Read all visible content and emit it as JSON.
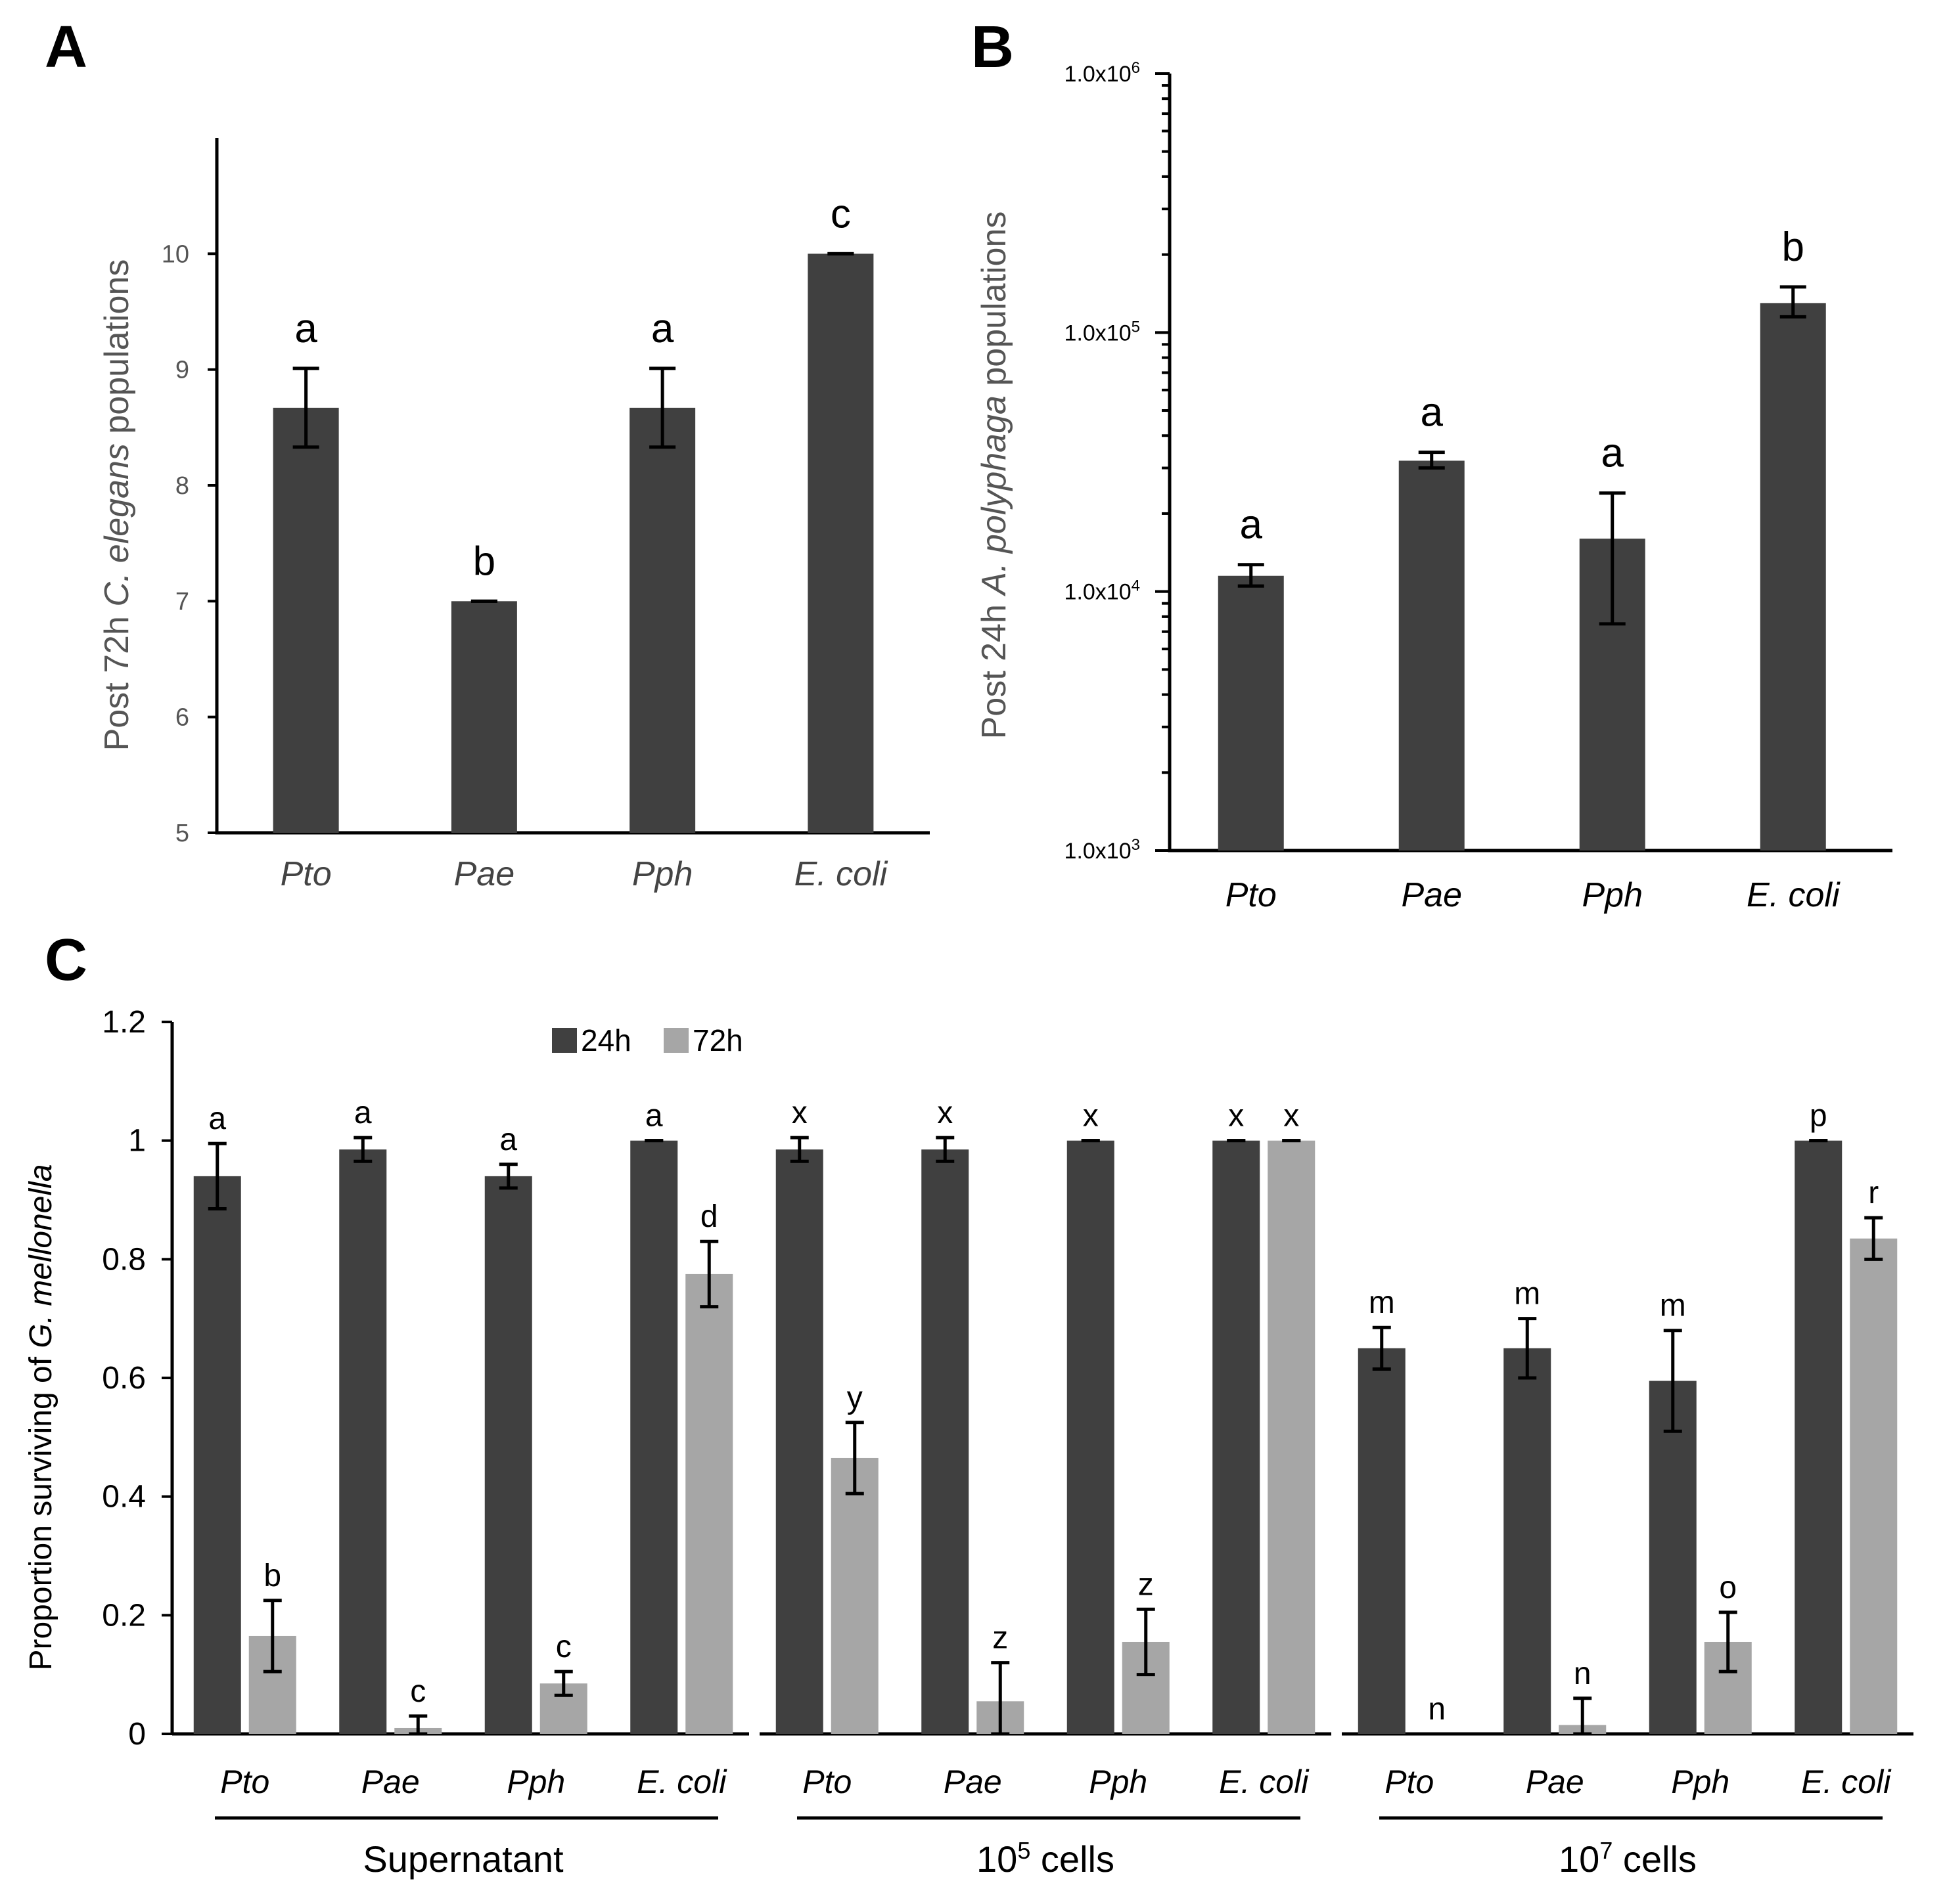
{
  "colors": {
    "dark": "#404040",
    "light": "#a6a6a6"
  },
  "chart_data": [
    {
      "id": "A",
      "type": "bar",
      "panel_label": "A",
      "categories": [
        "Pto",
        "Pae",
        "Pph",
        "E. coli"
      ],
      "values": [
        8.67,
        7.0,
        8.67,
        10.0
      ],
      "errors": [
        0.34,
        0.0,
        0.34,
        0.0
      ],
      "letters": [
        "a",
        "b",
        "a",
        "c"
      ],
      "ylim": [
        5,
        11
      ],
      "yticks": [
        5,
        6,
        7,
        8,
        9,
        10
      ],
      "ytick_labels": [
        "5",
        "6",
        "7",
        "8",
        "9",
        "10"
      ],
      "ylabel_parts": [
        "Post 72h ",
        "C. elegans",
        " populations"
      ]
    },
    {
      "id": "B",
      "type": "bar",
      "panel_label": "B",
      "yscale": "log",
      "categories": [
        "Pto",
        "Pae",
        "Pph",
        "E. coli"
      ],
      "values": [
        11500,
        32000,
        16000,
        130000
      ],
      "err_low": [
        10500,
        30000,
        7500,
        115000
      ],
      "err_high": [
        12700,
        34500,
        24000,
        150000
      ],
      "letters": [
        "a",
        "a",
        "a",
        "b"
      ],
      "ylim": [
        1000,
        1000000
      ],
      "ytick_labels": [
        {
          "base": "1.0x10",
          "exp": "6"
        },
        {
          "base": "1.0x10",
          "exp": "5"
        },
        {
          "base": "1.0x10",
          "exp": "4"
        },
        {
          "base": "1.0x10",
          "exp": "3"
        }
      ],
      "ylabel_parts": [
        "Post 24h ",
        "A. polyphaga",
        " populations"
      ]
    },
    {
      "id": "C",
      "type": "bar",
      "panel_label": "C",
      "legend": [
        "24h",
        "72h"
      ],
      "ylim": [
        0,
        1.2
      ],
      "yticks": [
        0,
        0.2,
        0.4,
        0.6,
        0.8,
        1,
        1.2
      ],
      "ytick_labels": [
        "0",
        "0.2",
        "0.4",
        "0.6",
        "0.8",
        "1",
        "1.2"
      ],
      "ylabel_parts": [
        "Proportion surviving of ",
        "G. mellonella"
      ],
      "groups": [
        {
          "label": "Supernatant",
          "label_base": "Supernatant",
          "label_sup": "",
          "label_rest": "",
          "categories": [
            "Pto",
            "Pae",
            "Pph",
            "E. coli"
          ],
          "series": [
            {
              "name": "24h",
              "values": [
                0.94,
                0.985,
                0.94,
                1.0
              ],
              "errors": [
                0.055,
                0.02,
                0.02,
                0.0
              ],
              "letters": [
                "a",
                "a",
                "a",
                "a"
              ]
            },
            {
              "name": "72h",
              "values": [
                0.165,
                0.01,
                0.085,
                0.775
              ],
              "errors": [
                0.06,
                0.02,
                0.02,
                0.055
              ],
              "letters": [
                "b",
                "c",
                "c",
                "d"
              ]
            }
          ]
        },
        {
          "label": "10^5 cells",
          "label_base": "10",
          "label_sup": "5",
          "label_rest": " cells",
          "categories": [
            "Pto",
            "Pae",
            "Pph",
            "E. coli"
          ],
          "series": [
            {
              "name": "24h",
              "values": [
                0.985,
                0.985,
                1.0,
                1.0
              ],
              "errors": [
                0.02,
                0.02,
                0.0,
                0.0
              ],
              "letters": [
                "x",
                "x",
                "x",
                "x"
              ]
            },
            {
              "name": "72h",
              "values": [
                0.465,
                0.055,
                0.155,
                1.0
              ],
              "errors": [
                0.06,
                0.065,
                0.055,
                0.0
              ],
              "letters": [
                "y",
                "z",
                "z",
                "x"
              ]
            }
          ]
        },
        {
          "label": "10^7 cells",
          "label_base": "10",
          "label_sup": "7",
          "label_rest": " cells",
          "categories": [
            "Pto",
            "Pae",
            "Pph",
            "E. coli"
          ],
          "series": [
            {
              "name": "24h",
              "values": [
                0.65,
                0.65,
                0.595,
                1.0
              ],
              "errors": [
                0.035,
                0.05,
                0.085,
                0.0
              ],
              "letters": [
                "m",
                "m",
                "m",
                "p"
              ]
            },
            {
              "name": "72h",
              "values": [
                0.0,
                0.015,
                0.155,
                0.835
              ],
              "errors": [
                0.0,
                0.045,
                0.05,
                0.035
              ],
              "letters": [
                "n",
                "n",
                "o",
                "r"
              ]
            }
          ]
        }
      ]
    }
  ]
}
